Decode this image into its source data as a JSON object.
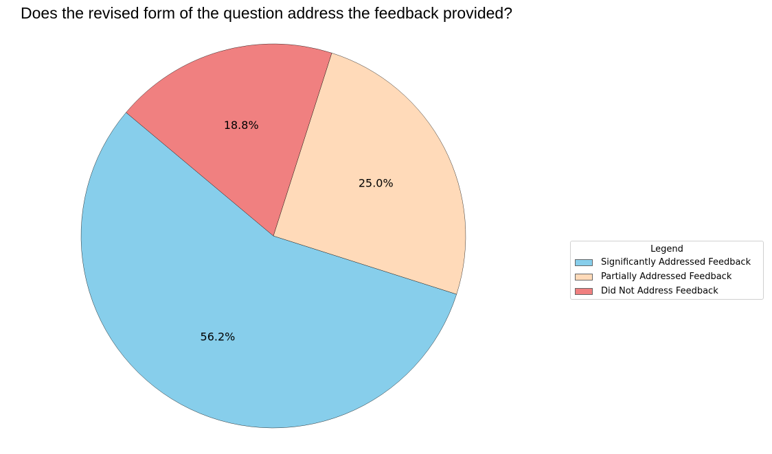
{
  "chart_data": {
    "type": "pie",
    "title": "Does the revised form of the question address the feedback provided?",
    "categories": [
      "Significantly Addressed Feedback",
      "Partially Addressed Feedback",
      "Did Not Address Feedback"
    ],
    "values": [
      56.2,
      25.0,
      18.8
    ],
    "labels": [
      "56.2%",
      "25.0%",
      "18.8%"
    ],
    "colors": [
      "#87CEEB",
      "#FFDAB9",
      "#F08080"
    ],
    "start_angle_deg": 140,
    "direction": "counterclockwise",
    "legend": {
      "title": "Legend",
      "placement": "center-right"
    }
  }
}
